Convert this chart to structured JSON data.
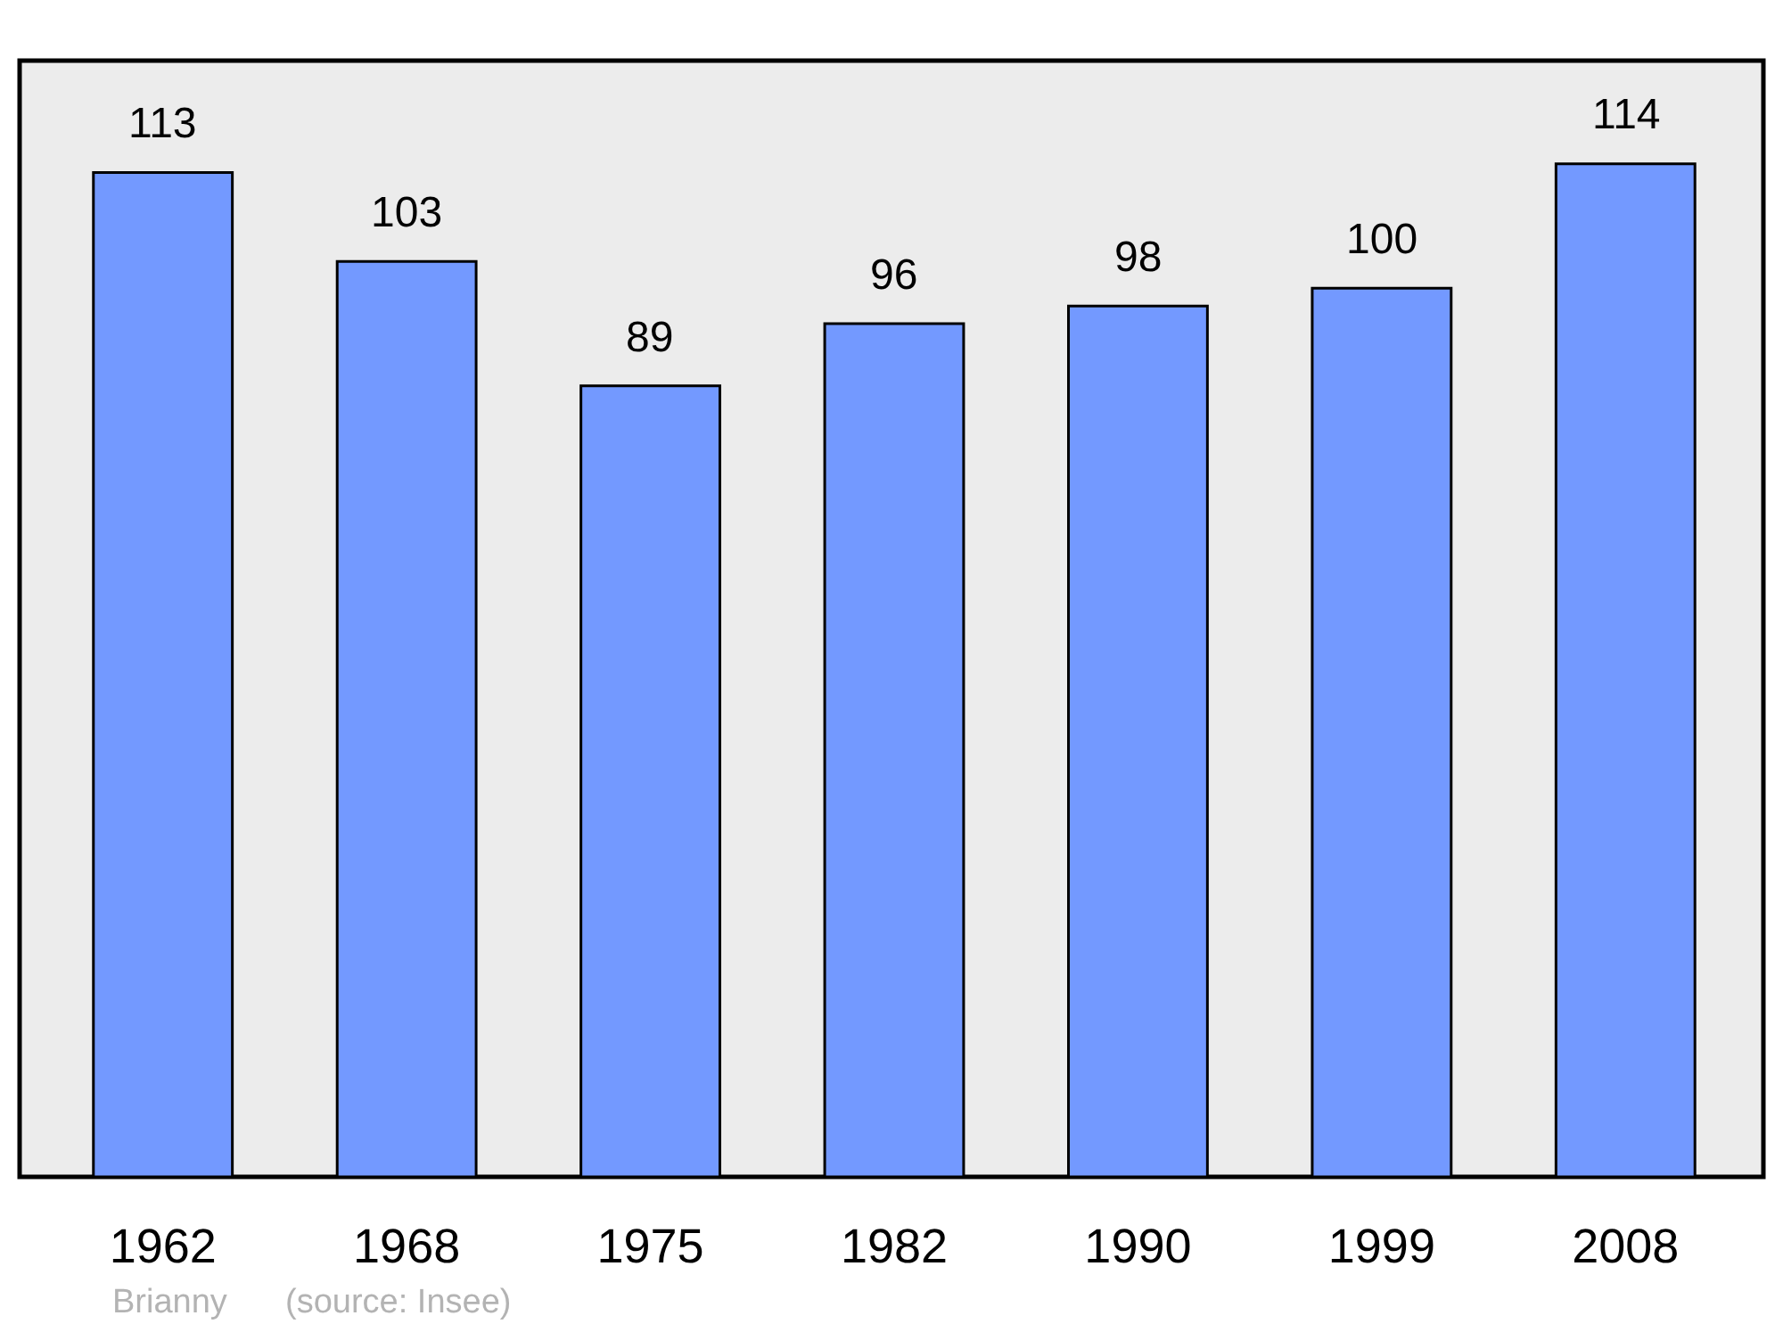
{
  "chart_data": {
    "type": "bar",
    "categories": [
      "1962",
      "1968",
      "1975",
      "1982",
      "1990",
      "1999",
      "2008"
    ],
    "values": [
      113,
      103,
      89,
      96,
      98,
      100,
      114
    ],
    "color": "#7399ff",
    "ylim": [
      0,
      125
    ],
    "data_labels": true,
    "tick_labels": "x",
    "annotations": [
      "Brianny",
      "(source: Insee)"
    ]
  }
}
